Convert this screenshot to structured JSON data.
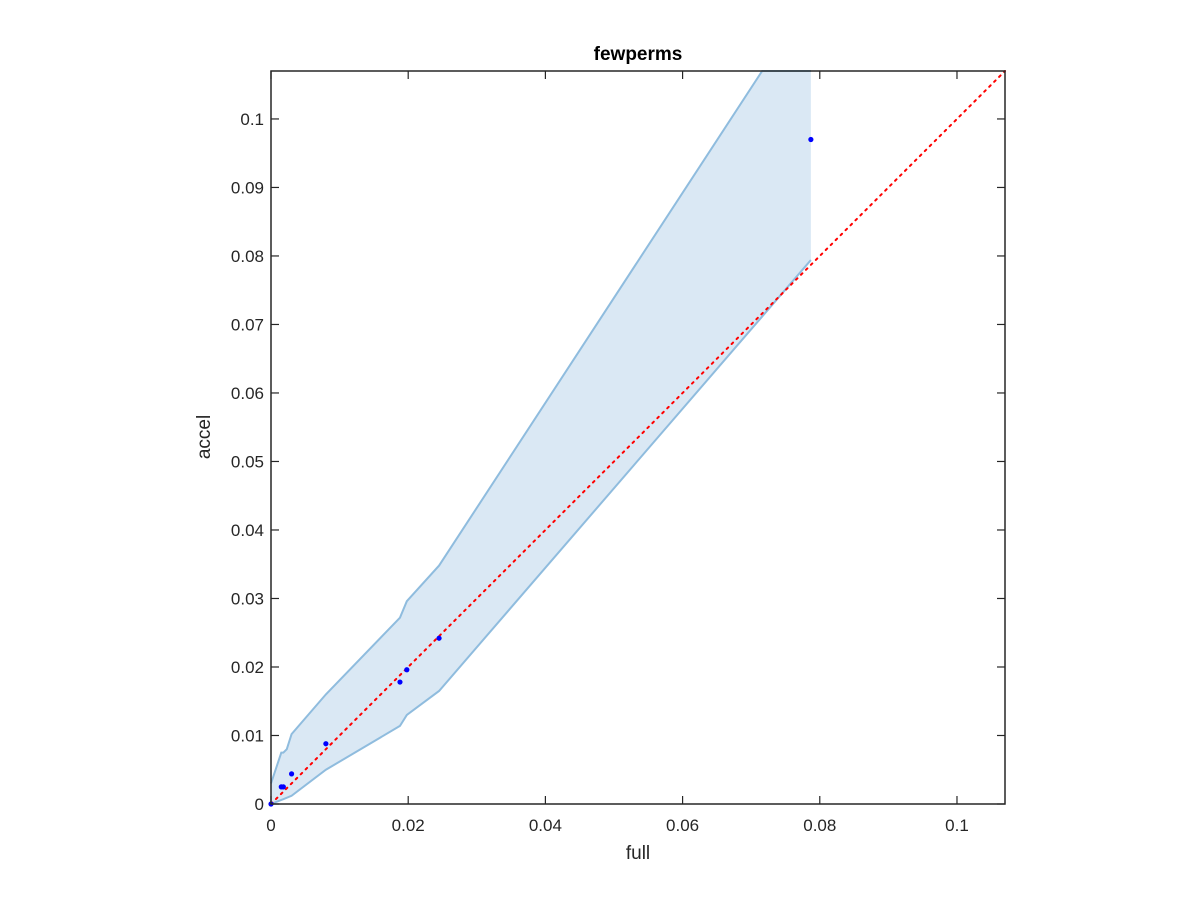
{
  "chart_data": {
    "type": "scatter",
    "title": "fewperms",
    "xlabel": "full",
    "ylabel": "accel",
    "xlim": [
      0,
      0.107
    ],
    "ylim": [
      0,
      0.107
    ],
    "xticks": [
      0,
      0.02,
      0.04,
      0.06,
      0.08,
      0.1
    ],
    "yticks": [
      0,
      0.01,
      0.02,
      0.03,
      0.04,
      0.05,
      0.06,
      0.07,
      0.08,
      0.09,
      0.1
    ],
    "xtick_labels": [
      "0",
      "0.02",
      "0.04",
      "0.06",
      "0.08",
      "0.1"
    ],
    "ytick_labels": [
      "0",
      "0.01",
      "0.02",
      "0.03",
      "0.04",
      "0.05",
      "0.06",
      "0.07",
      "0.08",
      "0.09",
      "0.1"
    ],
    "grid": false,
    "points": {
      "color": "#0000ff",
      "x": [
        0,
        0.0015,
        0.0018,
        0.003,
        0.008,
        0.0188,
        0.0198,
        0.0245,
        0.0787
      ],
      "y": [
        0,
        0.0025,
        0.0025,
        0.0044,
        0.0088,
        0.0178,
        0.0196,
        0.0242,
        0.097
      ]
    },
    "band": {
      "fill": "#dae8f4",
      "edge": "#8fbcde",
      "upper": {
        "x": [
          0,
          0.0015,
          0.0018,
          0.0023,
          0.003,
          0.008,
          0.0188,
          0.0198,
          0.0245,
          0.0716,
          0.0787
        ],
        "y": [
          0.003,
          0.0075,
          0.0075,
          0.008,
          0.0102,
          0.016,
          0.0272,
          0.0296,
          0.0348,
          0.107,
          0.107
        ]
      },
      "lower": {
        "x": [
          0,
          0.0015,
          0.0018,
          0.003,
          0.008,
          0.0188,
          0.0198,
          0.0245,
          0.0787
        ],
        "y": [
          0,
          0.0006,
          0.0007,
          0.0012,
          0.005,
          0.0114,
          0.013,
          0.0165,
          0.0794
        ]
      }
    },
    "reference_line": {
      "color": "#ff0000",
      "style": "dotted",
      "x": [
        0,
        0.107
      ],
      "y": [
        0,
        0.107
      ]
    }
  }
}
